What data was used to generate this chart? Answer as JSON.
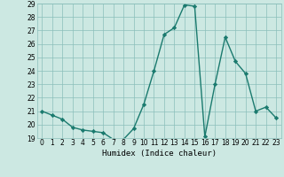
{
  "xlabel": "Humidex (Indice chaleur)",
  "x": [
    0,
    1,
    2,
    3,
    4,
    5,
    6,
    7,
    8,
    9,
    10,
    11,
    12,
    13,
    14,
    15,
    16,
    17,
    18,
    19,
    20,
    21,
    22,
    23
  ],
  "y": [
    21.0,
    20.7,
    20.4,
    19.8,
    19.6,
    19.5,
    19.4,
    18.9,
    18.9,
    19.7,
    21.5,
    24.0,
    26.7,
    27.2,
    28.9,
    28.8,
    19.1,
    23.0,
    26.5,
    24.7,
    23.8,
    21.0,
    21.3,
    20.5
  ],
  "line_color": "#1a7a6e",
  "marker": "D",
  "marker_size": 2.2,
  "bg_color": "#cce8e2",
  "grid_color": "#8bbfba",
  "ylim": [
    19,
    29
  ],
  "xlim_min": -0.5,
  "xlim_max": 23.5,
  "yticks": [
    19,
    20,
    21,
    22,
    23,
    24,
    25,
    26,
    27,
    28,
    29
  ],
  "xticks": [
    0,
    1,
    2,
    3,
    4,
    5,
    6,
    7,
    8,
    9,
    10,
    11,
    12,
    13,
    14,
    15,
    16,
    17,
    18,
    19,
    20,
    21,
    22,
    23
  ],
  "tick_fontsize": 5.5,
  "xlabel_fontsize": 6.5,
  "line_width": 1.0,
  "marker_color": "#1a7a6e"
}
